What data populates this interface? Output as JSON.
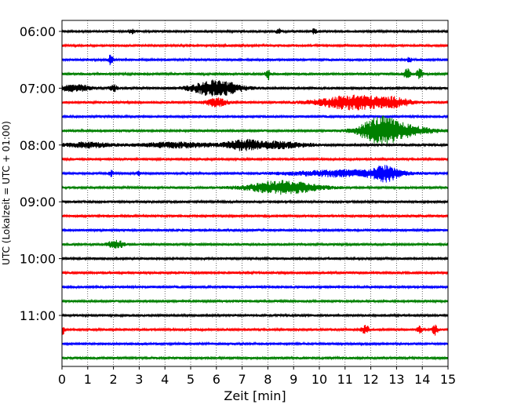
{
  "chart_data": {
    "type": "line",
    "title": "",
    "xlabel": "Zeit  [min]",
    "ylabel": "UTC (Lokalzeit = UTC + 01:00)",
    "xlim": [
      0,
      15
    ],
    "x_ticks": [
      "0",
      "1",
      "2",
      "3",
      "4",
      "5",
      "6",
      "7",
      "8",
      "9",
      "10",
      "11",
      "12",
      "13",
      "14",
      "15"
    ],
    "y_tick_labels": [
      "06:00",
      "07:00",
      "08:00",
      "09:00",
      "10:00",
      "11:00"
    ],
    "grid": "vertical dotted",
    "trace_interval_minutes": 15,
    "start_time": "06:00",
    "trace_colors": [
      "#000000",
      "#ff0000",
      "#0000ff",
      "#008000"
    ],
    "traces": [
      {
        "time": "06:00",
        "events": [
          {
            "t": 2.7,
            "a": 3,
            "w": 0.12
          },
          {
            "t": 8.4,
            "a": 4,
            "w": 0.08
          },
          {
            "t": 9.8,
            "a": 3,
            "w": 0.08
          }
        ]
      },
      {
        "time": "06:15",
        "events": []
      },
      {
        "time": "06:30",
        "events": [
          {
            "t": 1.9,
            "a": 7,
            "w": 0.08
          },
          {
            "t": 13.5,
            "a": 3,
            "w": 0.08
          }
        ]
      },
      {
        "time": "06:45",
        "events": [
          {
            "t": 8.0,
            "a": 8,
            "w": 0.08
          },
          {
            "t": 13.4,
            "a": 7,
            "w": 0.12
          },
          {
            "t": 13.9,
            "a": 6,
            "w": 0.12
          }
        ]
      },
      {
        "time": "07:00",
        "events": [
          {
            "t": 0.5,
            "a": 4,
            "w": 0.6
          },
          {
            "t": 2.0,
            "a": 4,
            "w": 0.15
          },
          {
            "t": 6.0,
            "a": 10,
            "w": 0.9
          }
        ]
      },
      {
        "time": "07:15",
        "events": [
          {
            "t": 6.0,
            "a": 5,
            "w": 0.4
          },
          {
            "t": 11.4,
            "a": 9,
            "w": 1.4
          },
          {
            "t": 13.0,
            "a": 4,
            "w": 0.5
          }
        ]
      },
      {
        "time": "07:30",
        "events": []
      },
      {
        "time": "07:45",
        "events": [
          {
            "t": 12.3,
            "a": 12,
            "w": 0.7
          },
          {
            "t": 13.0,
            "a": 8,
            "w": 1.2
          }
        ]
      },
      {
        "time": "08:00",
        "events": [
          {
            "t": 1.0,
            "a": 3,
            "w": 0.9
          },
          {
            "t": 4.5,
            "a": 3,
            "w": 1.5
          },
          {
            "t": 7.0,
            "a": 5,
            "w": 0.6
          },
          {
            "t": 8.3,
            "a": 4,
            "w": 1.2
          }
        ]
      },
      {
        "time": "08:15",
        "events": []
      },
      {
        "time": "08:30",
        "events": [
          {
            "t": 1.9,
            "a": 4,
            "w": 0.08
          },
          {
            "t": 3.0,
            "a": 3,
            "w": 0.08
          },
          {
            "t": 11.0,
            "a": 4,
            "w": 2.0
          },
          {
            "t": 12.6,
            "a": 8,
            "w": 0.5
          }
        ]
      },
      {
        "time": "08:45",
        "events": [
          {
            "t": 8.6,
            "a": 8,
            "w": 1.3
          }
        ]
      },
      {
        "time": "09:00",
        "events": []
      },
      {
        "time": "09:15",
        "events": []
      },
      {
        "time": "09:30",
        "events": []
      },
      {
        "time": "09:45",
        "events": [
          {
            "t": 2.1,
            "a": 5,
            "w": 0.3
          }
        ]
      },
      {
        "time": "10:00",
        "events": []
      },
      {
        "time": "10:15",
        "events": []
      },
      {
        "time": "10:30",
        "events": []
      },
      {
        "time": "10:45",
        "events": []
      },
      {
        "time": "11:00",
        "events": []
      },
      {
        "time": "11:15",
        "events": [
          {
            "t": 0.05,
            "a": 6,
            "w": 0.06
          },
          {
            "t": 11.8,
            "a": 5,
            "w": 0.15
          },
          {
            "t": 13.9,
            "a": 4,
            "w": 0.1
          },
          {
            "t": 14.5,
            "a": 7,
            "w": 0.1
          }
        ]
      },
      {
        "time": "11:30",
        "events": []
      },
      {
        "time": "11:45",
        "events": []
      }
    ]
  }
}
